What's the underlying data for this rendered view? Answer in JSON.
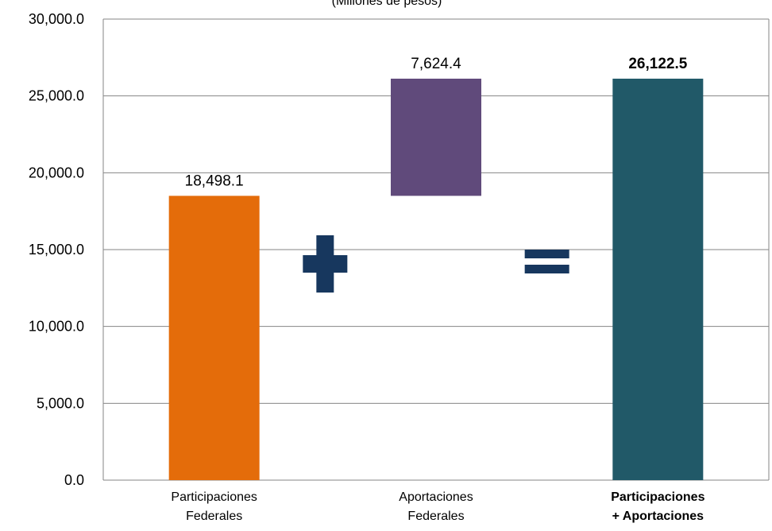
{
  "chart_data": {
    "type": "bar",
    "title": "(Millones de pesos)",
    "categories": [
      [
        "Participaciones",
        "Federales"
      ],
      [
        "Aportaciones",
        "Federales"
      ],
      [
        "Participaciones",
        "+ Aportaciones"
      ]
    ],
    "bars": [
      {
        "category_index": 0,
        "base": 0,
        "value": 18498.1,
        "label": "18,498.1",
        "color": "#E46C0A",
        "bold": false
      },
      {
        "category_index": 1,
        "base": 18498.1,
        "value": 7624.4,
        "label": "7,624.4",
        "color": "#604A7B",
        "bold": false
      },
      {
        "category_index": 2,
        "base": 0,
        "value": 26122.5,
        "label": "26,122.5",
        "color": "#215968",
        "bold": true
      }
    ],
    "operators": [
      "plus",
      "equals"
    ],
    "operator_color": "#17375E",
    "ylim": [
      0,
      30000
    ],
    "yticks": [
      0,
      5000,
      10000,
      15000,
      20000,
      25000,
      30000
    ],
    "ytick_labels": [
      "0.0",
      "5,000.0",
      "10,000.0",
      "15,000.0",
      "20,000.0",
      "25,000.0",
      "30,000.0"
    ],
    "grid": true
  }
}
